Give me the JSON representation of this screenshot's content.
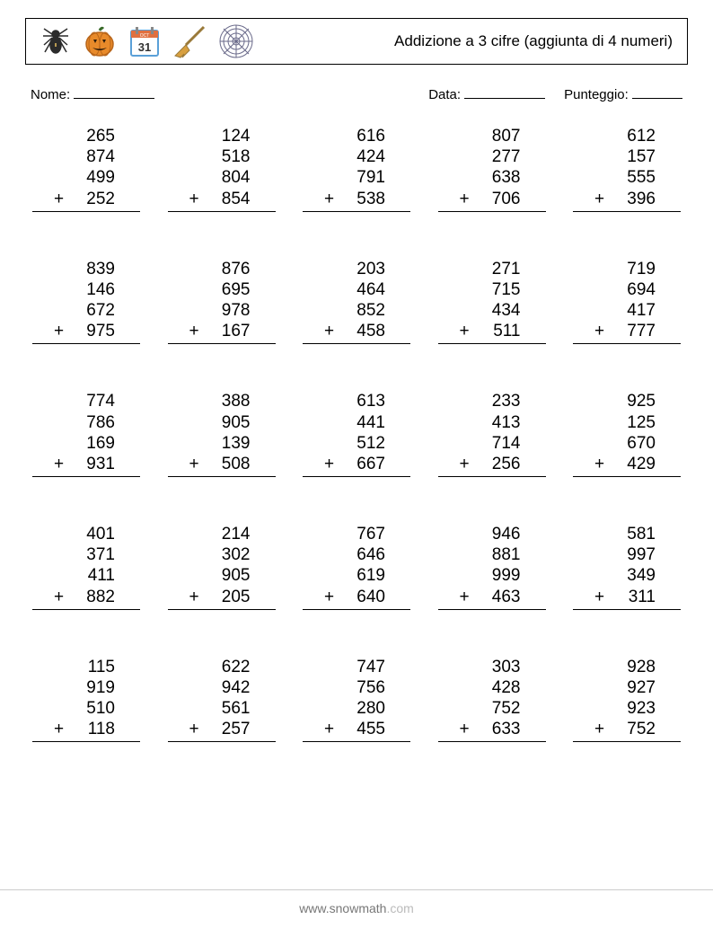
{
  "header": {
    "title": "Addizione a 3 cifre (aggiunta di 4 numeri)",
    "icons": [
      "spider",
      "pumpkin",
      "calendar",
      "broom",
      "web"
    ]
  },
  "info": {
    "name_label": "Nome:",
    "date_label": "Data:",
    "score_label": "Punteggio:"
  },
  "footer": {
    "site": "www.snowmath",
    "tld": ".com"
  },
  "style": {
    "font_family": "Arial",
    "number_fontsize": 19,
    "title_fontsize": 17,
    "info_fontsize": 15,
    "text_color": "#000000",
    "background_color": "#ffffff",
    "footer_color": "#777777",
    "border_color": "#000000",
    "columns": 5,
    "rows": 5,
    "operator": "+",
    "icon_colors": {
      "spider": "#2b2b2b",
      "pumpkin_fill": "#e88a2a",
      "pumpkin_stem": "#3a6b2a",
      "calendar_border": "#5aa0d8",
      "calendar_top": "#e07040",
      "broom_handle": "#9a7a3a",
      "broom_head": "#d8a040",
      "web": "#6a6a8a"
    }
  },
  "problems": [
    [
      {
        "nums": [
          265,
          874,
          499
        ],
        "add": 252
      },
      {
        "nums": [
          124,
          518,
          804
        ],
        "add": 854
      },
      {
        "nums": [
          616,
          424,
          791
        ],
        "add": 538
      },
      {
        "nums": [
          807,
          277,
          638
        ],
        "add": 706
      },
      {
        "nums": [
          612,
          157,
          555
        ],
        "add": 396
      }
    ],
    [
      {
        "nums": [
          839,
          146,
          672
        ],
        "add": 975
      },
      {
        "nums": [
          876,
          695,
          978
        ],
        "add": 167
      },
      {
        "nums": [
          203,
          464,
          852
        ],
        "add": 458
      },
      {
        "nums": [
          271,
          715,
          434
        ],
        "add": 511
      },
      {
        "nums": [
          719,
          694,
          417
        ],
        "add": 777
      }
    ],
    [
      {
        "nums": [
          774,
          786,
          169
        ],
        "add": 931
      },
      {
        "nums": [
          388,
          905,
          139
        ],
        "add": 508
      },
      {
        "nums": [
          613,
          441,
          512
        ],
        "add": 667
      },
      {
        "nums": [
          233,
          413,
          714
        ],
        "add": 256
      },
      {
        "nums": [
          925,
          125,
          670
        ],
        "add": 429
      }
    ],
    [
      {
        "nums": [
          401,
          371,
          411
        ],
        "add": 882
      },
      {
        "nums": [
          214,
          302,
          905
        ],
        "add": 205
      },
      {
        "nums": [
          767,
          646,
          619
        ],
        "add": 640
      },
      {
        "nums": [
          946,
          881,
          999
        ],
        "add": 463
      },
      {
        "nums": [
          581,
          997,
          349
        ],
        "add": 311
      }
    ],
    [
      {
        "nums": [
          115,
          919,
          510
        ],
        "add": 118
      },
      {
        "nums": [
          622,
          942,
          561
        ],
        "add": 257
      },
      {
        "nums": [
          747,
          756,
          280
        ],
        "add": 455
      },
      {
        "nums": [
          303,
          428,
          752
        ],
        "add": 633
      },
      {
        "nums": [
          928,
          927,
          923
        ],
        "add": 752
      }
    ]
  ]
}
